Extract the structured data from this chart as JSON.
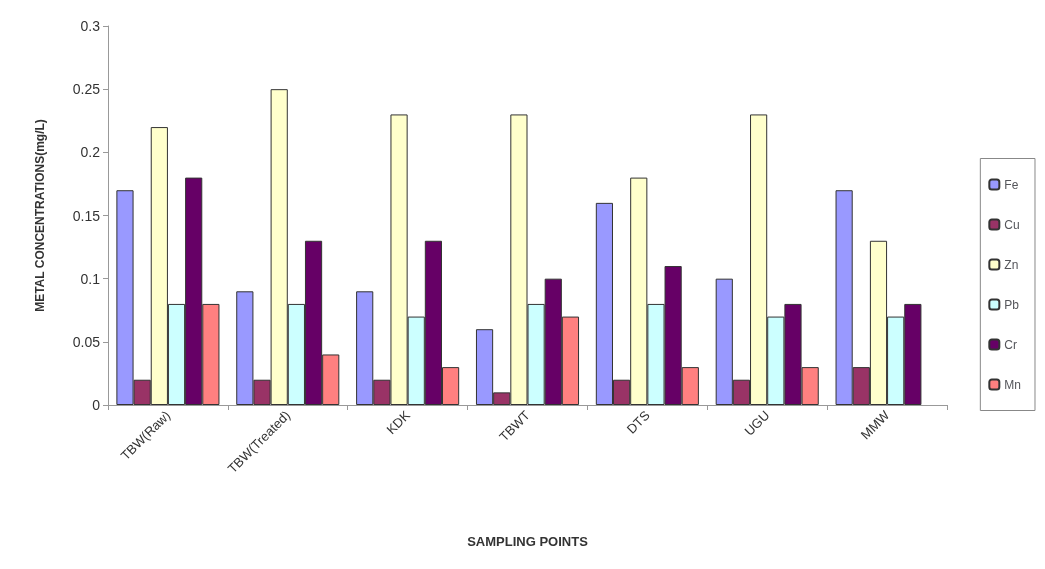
{
  "chart_data": {
    "type": "bar",
    "xlabel": "SAMPLING POINTS",
    "ylabel": "METAL CONCENTRATIONS(mg/L)",
    "categories": [
      "TBW(Raw)",
      "TBW(Treated)",
      "KDK",
      "TBWT",
      "DTS",
      "UGU",
      "MMW"
    ],
    "series": [
      {
        "name": "Fe",
        "color": "#9999ff",
        "values": [
          0.17,
          0.09,
          0.09,
          0.06,
          0.16,
          0.1,
          0.17
        ]
      },
      {
        "name": "Cu",
        "color": "#993366",
        "values": [
          0.02,
          0.02,
          0.02,
          0.01,
          0.02,
          0.02,
          0.03
        ]
      },
      {
        "name": "Zn",
        "color": "#ffffcc",
        "values": [
          0.22,
          0.25,
          0.23,
          0.23,
          0.18,
          0.23,
          0.13
        ]
      },
      {
        "name": "Pb",
        "color": "#ccffff",
        "values": [
          0.08,
          0.08,
          0.07,
          0.08,
          0.08,
          0.07,
          0.07
        ]
      },
      {
        "name": "Cr",
        "color": "#660066",
        "values": [
          0.18,
          0.13,
          0.13,
          0.1,
          0.11,
          0.08,
          0.08
        ]
      },
      {
        "name": "Mn",
        "color": "#ff8080",
        "values": [
          0.08,
          0.04,
          0.03,
          0.07,
          0.03,
          0.03,
          null
        ]
      }
    ],
    "ylim": [
      0,
      0.3
    ],
    "yticks": [
      0,
      0.05,
      0.1,
      0.15,
      0.2,
      0.25,
      0.3
    ],
    "grid": false,
    "legend": "right"
  }
}
